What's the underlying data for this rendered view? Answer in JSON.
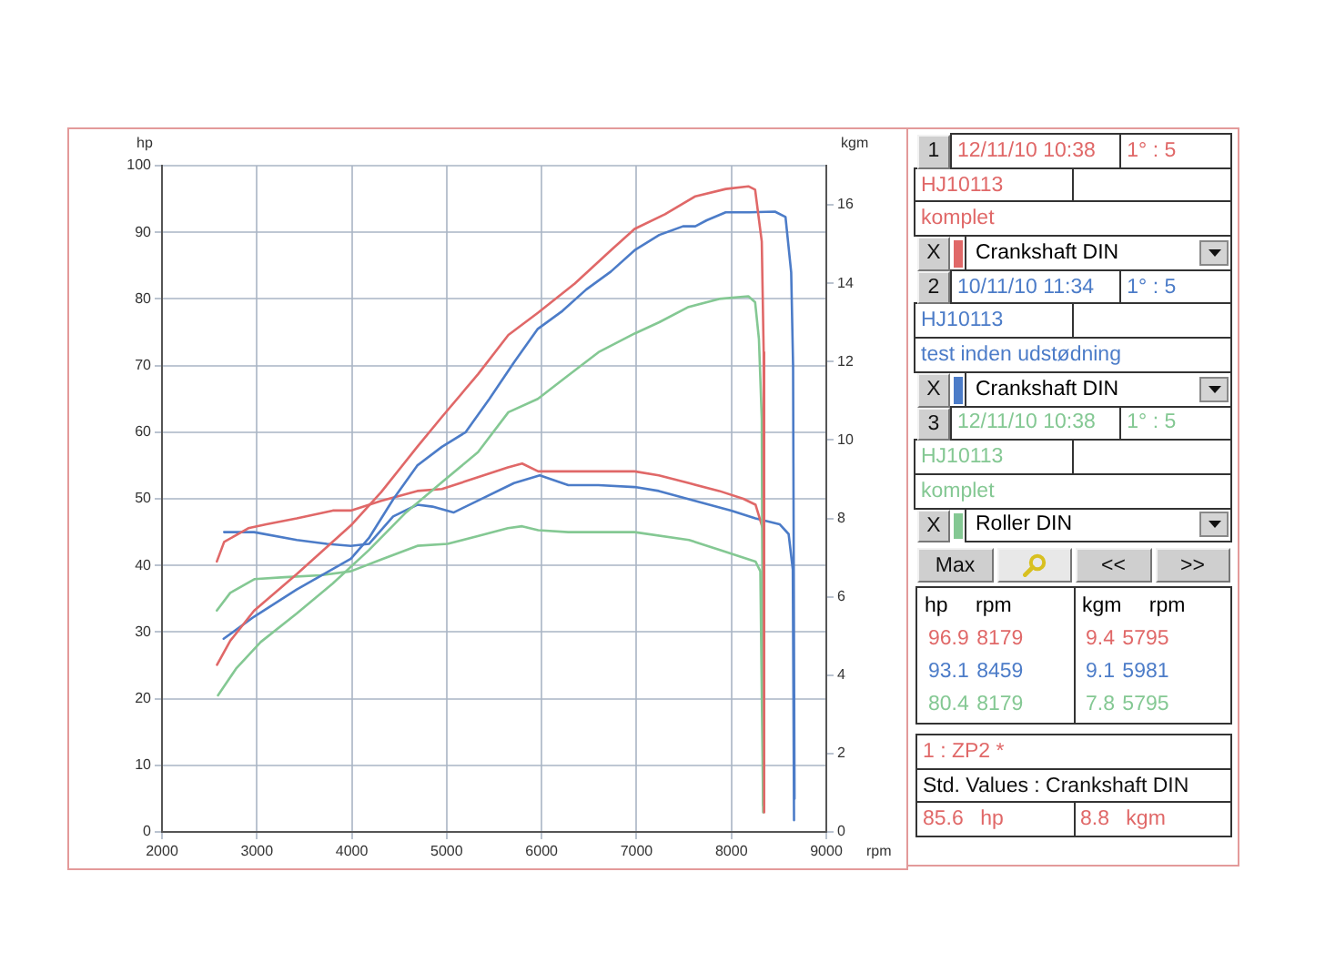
{
  "chart_data": [
    {
      "type": "line",
      "xlabel": "rpm",
      "ylabel": "hp",
      "y2label": "kgm",
      "xlim": [
        2000,
        9000
      ],
      "xticks": [
        2000,
        3000,
        4000,
        5000,
        6000,
        7000,
        8000,
        9000
      ],
      "ylim": [
        0,
        100
      ],
      "yticks": [
        0,
        10,
        20,
        30,
        40,
        50,
        60,
        70,
        80,
        90,
        100
      ],
      "y2lim": [
        0,
        17
      ],
      "y2ticks": [
        0,
        2,
        4,
        6,
        8,
        10,
        12,
        14,
        16
      ],
      "grid": true,
      "legend": false,
      "marker": "none",
      "line_style": "solid",
      "series": [
        {
          "color": "#e06868",
          "x": [
            2580,
            2720,
            2970,
            3420,
            3990,
            4310,
            4690,
            4950,
            5330,
            5650,
            5960,
            6350,
            6730,
            6980,
            7300,
            7620,
            7940,
            8179,
            8250,
            8320,
            8340,
            8345
          ],
          "values": [
            25.1,
            28.7,
            33.2,
            38.7,
            46,
            51,
            57.8,
            62.3,
            68.7,
            74.6,
            77.9,
            82.3,
            87.3,
            90.5,
            92.7,
            95.4,
            96.5,
            96.9,
            96.4,
            88.6,
            72,
            4
          ]
        },
        {
          "color": "#4c7cc8",
          "x": [
            2650,
            2970,
            3420,
            3990,
            4180,
            4440,
            4690,
            4950,
            5200,
            5450,
            5710,
            5960,
            6220,
            6470,
            6730,
            6980,
            7240,
            7490,
            7620,
            7740,
            7940,
            8190,
            8459,
            8570,
            8630,
            8650,
            8665
          ],
          "values": [
            29,
            32.3,
            36.4,
            41,
            44.1,
            50,
            55,
            57.8,
            60,
            65,
            70.5,
            75.5,
            78.2,
            81.4,
            84.1,
            87.3,
            89.6,
            90.9,
            90.9,
            91.8,
            93,
            93,
            93.1,
            92.3,
            84,
            70,
            5
          ]
        },
        {
          "color": "#84c893",
          "x": [
            2590,
            2780,
            3040,
            3420,
            3800,
            4180,
            4560,
            4950,
            5330,
            5650,
            5960,
            6280,
            6600,
            6980,
            7240,
            7550,
            7870,
            8179,
            8250,
            8290,
            8320,
            8335
          ],
          "values": [
            20.5,
            24.5,
            28.5,
            32.8,
            37.3,
            42.3,
            47.8,
            52.5,
            57,
            63,
            65,
            68.5,
            72,
            74.8,
            76.5,
            78.8,
            80,
            80.4,
            79.5,
            74,
            62,
            4
          ]
        },
        {
          "color": "#e06868",
          "axis": "y2",
          "x": [
            2578,
            2655,
            2910,
            3100,
            3420,
            3800,
            3990,
            4310,
            4690,
            4950,
            5330,
            5645,
            5795,
            5964,
            6280,
            6600,
            6980,
            7235,
            7553,
            7872,
            8126,
            8254,
            8330,
            8345
          ],
          "values": [
            6.9,
            7.4,
            7.75,
            7.85,
            8,
            8.2,
            8.2,
            8.45,
            8.7,
            8.75,
            9.05,
            9.3,
            9.4,
            9.2,
            9.2,
            9.2,
            9.2,
            9.1,
            8.9,
            8.7,
            8.5,
            8.35,
            7.75,
            0.5
          ]
        },
        {
          "color": "#4c7cc8",
          "axis": "y2",
          "x": [
            2655,
            2970,
            3420,
            3736,
            3990,
            4181,
            4436,
            4691,
            4850,
            5072,
            5327,
            5709,
            5981,
            6281,
            6599,
            6981,
            7235,
            7616,
            7998,
            8253,
            8508,
            8603,
            8647,
            8660
          ],
          "values": [
            7.65,
            7.65,
            7.45,
            7.35,
            7.3,
            7.35,
            8.05,
            8.35,
            8.3,
            8.15,
            8.45,
            8.9,
            9.1,
            8.85,
            8.85,
            8.8,
            8.7,
            8.45,
            8.2,
            8,
            7.85,
            7.6,
            6.7,
            0.3
          ]
        },
        {
          "color": "#84c893",
          "axis": "y2",
          "x": [
            2578,
            2719,
            2973,
            3292,
            3673,
            3990,
            4309,
            4691,
            5009,
            5327,
            5645,
            5795,
            5964,
            6281,
            6981,
            7553,
            7872,
            8254,
            8305,
            8335
          ],
          "values": [
            5.65,
            6.1,
            6.45,
            6.5,
            6.55,
            6.65,
            6.95,
            7.3,
            7.35,
            7.55,
            7.75,
            7.8,
            7.7,
            7.65,
            7.65,
            7.45,
            7.2,
            6.9,
            6.65,
            0.5
          ]
        }
      ]
    },
    {
      "type": "other",
      "annotations": [
        "1",
        "12/11/10 10:38",
        "1° : 5",
        "HJ10113",
        "komplet",
        "X",
        "Crankshaft DIN",
        "2",
        "10/11/10 11:34",
        "1° : 5",
        "HJ10113",
        "test inden udstødning",
        "X",
        "Crankshaft DIN",
        "3",
        "12/11/10 10:38",
        "1° : 5",
        "HJ10113",
        "komplet",
        "X",
        "Roller DIN",
        "Max",
        "<<",
        ">>",
        "hp rpm",
        "kgm rpm",
        "96.9 8179",
        "9.4 5795",
        "93.1 8459",
        "9.1 5981",
        "80.4 8179",
        "7.8 5795",
        "1 : ZP2 *",
        "Std. Values : Crankshaft DIN",
        "85.6 hp",
        "8.8 kgm"
      ]
    }
  ]
}
